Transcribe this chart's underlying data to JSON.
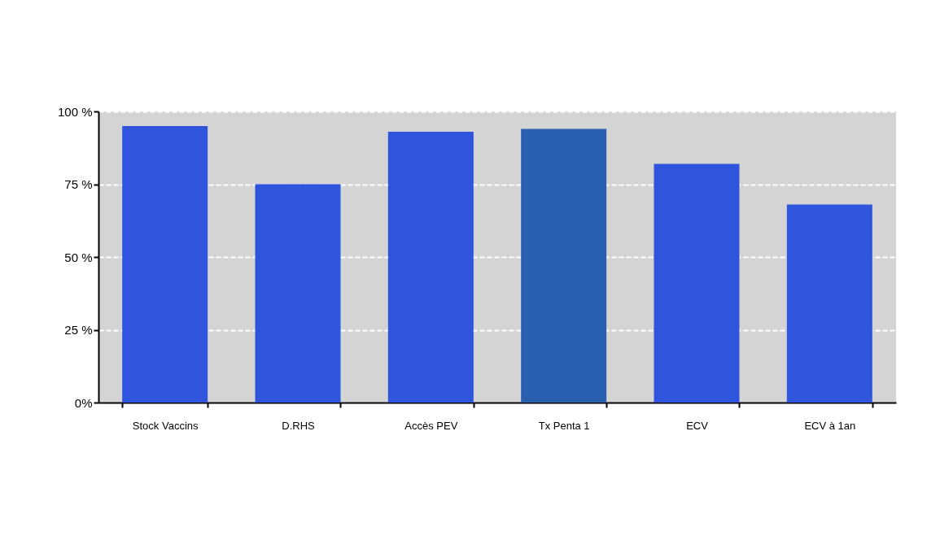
{
  "chart_data": {
    "type": "bar",
    "categories": [
      "Stock Vaccins",
      "D.RHS",
      "Accès PEV",
      "Tx Penta  1",
      "ECV",
      "ECV à   1an"
    ],
    "values": [
      95,
      75,
      93,
      94,
      82,
      68
    ],
    "colors": [
      "#2f55dc",
      "#2f55dc",
      "#2f55dc",
      "#2a5fb0",
      "#2f55dc",
      "#2f55dc"
    ],
    "ylim": [
      0,
      100
    ],
    "yticks": [
      {
        "value": 0,
        "label": "0%"
      },
      {
        "value": 25,
        "label": "25 %"
      },
      {
        "value": 50,
        "label": "50 %"
      },
      {
        "value": 75,
        "label": "75 %"
      },
      {
        "value": 100,
        "label": "100 %"
      }
    ],
    "grid": "y"
  }
}
